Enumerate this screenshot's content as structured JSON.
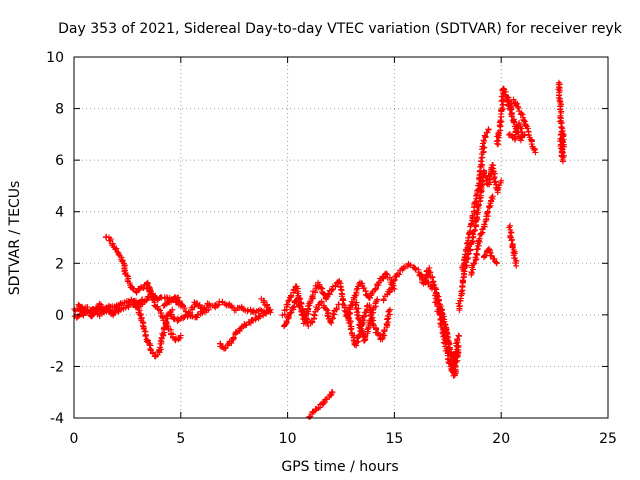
{
  "chart_data": {
    "type": "scatter",
    "title": "Day 353 of 2021, Sidereal Day-to-day VTEC variation (SDTVAR) for receiver reyk",
    "xlabel": "GPS time / hours",
    "ylabel": "SDTVAR / TECUs",
    "xlim": [
      0,
      25
    ],
    "ylim": [
      -4,
      10
    ],
    "xticks": [
      "0",
      "5",
      "10",
      "15",
      "20",
      "25"
    ],
    "yticks": [
      "-4",
      "-2",
      "0",
      "2",
      "4",
      "6",
      "8",
      "10"
    ],
    "grid": true,
    "marker": "plus",
    "series": [
      {
        "name": "SDTVAR",
        "color": "#ff0000",
        "segments": [
          [
            [
              0.0,
              0.2
            ],
            [
              0.3,
              0.3
            ],
            [
              0.6,
              0.1
            ],
            [
              0.9,
              0.2
            ],
            [
              1.2,
              0.0
            ],
            [
              1.5,
              0.2
            ],
            [
              1.8,
              0.3
            ],
            [
              2.1,
              0.4
            ],
            [
              2.4,
              0.5
            ],
            [
              2.7,
              0.6
            ],
            [
              3.0,
              0.5
            ],
            [
              3.3,
              0.6
            ],
            [
              3.6,
              0.7
            ],
            [
              3.9,
              0.6
            ],
            [
              4.2,
              0.7
            ],
            [
              4.5,
              0.6
            ],
            [
              4.8,
              0.5
            ],
            [
              5.0,
              0.4
            ]
          ],
          [
            [
              0.0,
              -0.1
            ],
            [
              0.3,
              0.0
            ],
            [
              0.6,
              0.1
            ],
            [
              0.9,
              0.2
            ],
            [
              1.2,
              0.3
            ],
            [
              1.5,
              0.2
            ],
            [
              1.8,
              0.1
            ],
            [
              2.1,
              0.2
            ],
            [
              2.4,
              0.3
            ],
            [
              2.7,
              0.4
            ],
            [
              3.0,
              0.3
            ],
            [
              3.3,
              0.5
            ]
          ],
          [
            [
              0.2,
              0.4
            ],
            [
              0.4,
              0.0
            ],
            [
              0.6,
              0.3
            ],
            [
              0.8,
              -0.1
            ],
            [
              1.0,
              0.2
            ],
            [
              1.2,
              0.4
            ],
            [
              1.4,
              0.1
            ],
            [
              1.6,
              0.3
            ],
            [
              1.8,
              0.0
            ],
            [
              2.0,
              0.2
            ]
          ],
          [
            [
              1.5,
              3.0
            ],
            [
              1.7,
              2.9
            ],
            [
              1.9,
              2.6
            ],
            [
              2.1,
              2.4
            ],
            [
              2.3,
              2.0
            ],
            [
              2.5,
              1.4
            ],
            [
              2.7,
              1.0
            ],
            [
              2.9,
              0.9
            ],
            [
              3.1,
              1.0
            ],
            [
              3.3,
              1.1
            ],
            [
              3.5,
              1.2
            ],
            [
              3.7,
              0.7
            ],
            [
              3.9,
              0.6
            ]
          ],
          [
            [
              2.8,
              0.5
            ],
            [
              3.0,
              0.3
            ],
            [
              3.2,
              -0.3
            ],
            [
              3.4,
              -0.9
            ],
            [
              3.6,
              -1.4
            ],
            [
              3.8,
              -1.6
            ],
            [
              4.0,
              -1.4
            ],
            [
              4.2,
              -0.6
            ],
            [
              4.4,
              0.0
            ],
            [
              4.6,
              0.2
            ]
          ],
          [
            [
              3.4,
              1.0
            ],
            [
              3.6,
              0.8
            ],
            [
              3.8,
              0.4
            ],
            [
              4.0,
              0.2
            ],
            [
              4.2,
              -0.2
            ],
            [
              4.4,
              -0.4
            ],
            [
              4.6,
              -0.8
            ],
            [
              4.8,
              -1.0
            ],
            [
              5.0,
              -0.8
            ]
          ],
          [
            [
              4.2,
              0.3
            ],
            [
              4.5,
              0.5
            ],
            [
              4.8,
              0.7
            ],
            [
              5.1,
              0.3
            ],
            [
              5.4,
              0.0
            ],
            [
              5.7,
              0.5
            ],
            [
              6.0,
              0.2
            ],
            [
              6.3,
              0.4
            ],
            [
              6.6,
              0.3
            ],
            [
              6.9,
              0.5
            ],
            [
              7.2,
              0.4
            ],
            [
              7.5,
              0.2
            ],
            [
              7.8,
              0.3
            ],
            [
              8.1,
              0.2
            ],
            [
              8.4,
              0.1
            ],
            [
              8.7,
              0.2
            ],
            [
              9.0,
              0.1
            ]
          ],
          [
            [
              4.5,
              0.0
            ],
            [
              4.8,
              -0.2
            ],
            [
              5.1,
              -0.1
            ],
            [
              5.4,
              0.0
            ],
            [
              5.7,
              -0.1
            ],
            [
              6.0,
              0.1
            ],
            [
              6.3,
              0.2
            ]
          ],
          [
            [
              6.8,
              -1.1
            ],
            [
              7.0,
              -1.3
            ],
            [
              7.2,
              -1.2
            ],
            [
              7.4,
              -1.0
            ],
            [
              7.6,
              -0.7
            ],
            [
              7.8,
              -0.5
            ],
            [
              8.0,
              -0.4
            ],
            [
              8.2,
              -0.3
            ],
            [
              8.4,
              -0.2
            ],
            [
              8.6,
              -0.1
            ],
            [
              8.8,
              0.0
            ],
            [
              9.0,
              0.1
            ],
            [
              9.2,
              0.2
            ]
          ],
          [
            [
              8.8,
              0.6
            ],
            [
              9.0,
              0.4
            ],
            [
              9.2,
              0.1
            ]
          ],
          [
            [
              9.8,
              0.0
            ],
            [
              10.0,
              0.4
            ],
            [
              10.2,
              0.8
            ],
            [
              10.4,
              1.1
            ],
            [
              10.6,
              0.5
            ],
            [
              10.8,
              -0.3
            ],
            [
              11.0,
              0.3
            ],
            [
              11.2,
              0.8
            ],
            [
              11.4,
              1.2
            ],
            [
              11.6,
              1.0
            ],
            [
              11.8,
              0.6
            ],
            [
              12.0,
              0.9
            ],
            [
              12.2,
              1.1
            ],
            [
              12.4,
              1.3
            ],
            [
              12.6,
              0.5
            ],
            [
              12.8,
              -0.2
            ],
            [
              13.0,
              0.4
            ],
            [
              13.2,
              0.9
            ],
            [
              13.4,
              1.3
            ],
            [
              13.6,
              1.0
            ],
            [
              13.8,
              0.6
            ],
            [
              14.0,
              0.9
            ],
            [
              14.2,
              1.1
            ],
            [
              14.4,
              1.4
            ],
            [
              14.6,
              1.6
            ],
            [
              14.8,
              1.4
            ],
            [
              15.0,
              1.0
            ]
          ],
          [
            [
              9.8,
              -0.5
            ],
            [
              10.0,
              -0.2
            ],
            [
              10.2,
              0.2
            ],
            [
              10.4,
              0.6
            ],
            [
              10.6,
              0.2
            ],
            [
              10.8,
              0.0
            ],
            [
              11.0,
              -0.4
            ],
            [
              11.2,
              -0.2
            ],
            [
              11.4,
              0.3
            ],
            [
              11.6,
              0.5
            ],
            [
              11.8,
              0.2
            ],
            [
              12.0,
              -0.3
            ],
            [
              12.2,
              0.1
            ],
            [
              12.4,
              0.4
            ]
          ],
          [
            [
              12.8,
              0.2
            ],
            [
              13.0,
              -0.6
            ],
            [
              13.2,
              -1.2
            ],
            [
              13.4,
              -0.6
            ],
            [
              13.6,
              0.0
            ],
            [
              13.8,
              0.4
            ],
            [
              14.0,
              -0.3
            ],
            [
              14.2,
              -0.7
            ],
            [
              14.4,
              -1.0
            ],
            [
              14.6,
              -0.5
            ],
            [
              14.8,
              0.2
            ]
          ],
          [
            [
              13.2,
              0.5
            ],
            [
              13.4,
              -0.4
            ],
            [
              13.6,
              -1.0
            ],
            [
              13.8,
              -0.5
            ],
            [
              14.0,
              0.2
            ],
            [
              14.2,
              0.6
            ]
          ],
          [
            [
              14.5,
              0.6
            ],
            [
              14.8,
              1.0
            ],
            [
              15.1,
              1.5
            ],
            [
              15.4,
              1.8
            ],
            [
              15.7,
              2.0
            ],
            [
              16.0,
              1.8
            ],
            [
              16.3,
              1.5
            ],
            [
              16.6,
              1.2
            ],
            [
              16.9,
              1.0
            ],
            [
              17.1,
              0.5
            ],
            [
              17.3,
              -0.2
            ],
            [
              17.5,
              -1.0
            ],
            [
              17.7,
              -2.0
            ],
            [
              17.8,
              -2.4
            ],
            [
              18.0,
              -1.2
            ]
          ],
          [
            [
              16.2,
              1.5
            ],
            [
              16.4,
              1.2
            ],
            [
              16.6,
              1.8
            ],
            [
              16.8,
              1.3
            ],
            [
              17.0,
              0.8
            ],
            [
              17.2,
              0.2
            ],
            [
              17.4,
              -0.6
            ],
            [
              17.6,
              -1.4
            ],
            [
              17.8,
              -1.8
            ],
            [
              18.0,
              -0.8
            ]
          ],
          [
            [
              16.9,
              0.7
            ],
            [
              17.1,
              0.0
            ],
            [
              17.3,
              -0.8
            ],
            [
              17.5,
              -1.6
            ],
            [
              17.7,
              -2.2
            ],
            [
              17.9,
              -1.5
            ]
          ],
          [
            [
              18.0,
              0.2
            ],
            [
              18.2,
              1.2
            ],
            [
              18.4,
              2.2
            ],
            [
              18.6,
              2.8
            ],
            [
              18.8,
              3.5
            ],
            [
              19.0,
              4.5
            ],
            [
              19.2,
              5.6
            ],
            [
              19.4,
              5.0
            ],
            [
              19.6,
              5.8
            ],
            [
              19.8,
              4.8
            ],
            [
              20.0,
              5.2
            ]
          ],
          [
            [
              18.2,
              1.8
            ],
            [
              18.4,
              2.6
            ],
            [
              18.6,
              3.6
            ],
            [
              18.8,
              4.4
            ],
            [
              19.0,
              5.2
            ],
            [
              19.2,
              6.8
            ],
            [
              19.4,
              7.2
            ]
          ],
          [
            [
              18.6,
              1.6
            ],
            [
              18.8,
              2.2
            ],
            [
              19.0,
              3.0
            ],
            [
              19.2,
              3.4
            ],
            [
              19.4,
              4.0
            ],
            [
              19.6,
              4.6
            ]
          ],
          [
            [
              19.2,
              2.2
            ],
            [
              19.4,
              2.6
            ],
            [
              19.6,
              2.2
            ],
            [
              19.8,
              2.0
            ]
          ],
          [
            [
              19.8,
              6.6
            ],
            [
              20.0,
              7.6
            ],
            [
              20.1,
              8.8
            ],
            [
              20.3,
              8.4
            ],
            [
              20.5,
              7.8
            ],
            [
              20.7,
              7.2
            ],
            [
              20.9,
              6.8
            ],
            [
              21.1,
              7.0
            ]
          ],
          [
            [
              20.2,
              8.4
            ],
            [
              20.4,
              8.0
            ],
            [
              20.6,
              8.3
            ],
            [
              20.8,
              8.1
            ],
            [
              21.0,
              7.6
            ],
            [
              21.2,
              7.3
            ],
            [
              21.4,
              6.8
            ],
            [
              21.6,
              6.3
            ]
          ],
          [
            [
              20.4,
              7.0
            ],
            [
              20.6,
              6.8
            ],
            [
              20.8,
              7.4
            ],
            [
              21.0,
              7.0
            ]
          ],
          [
            [
              20.4,
              3.4
            ],
            [
              20.5,
              2.8
            ],
            [
              20.6,
              2.4
            ],
            [
              20.7,
              1.9
            ]
          ],
          [
            [
              22.7,
              9.0
            ],
            [
              22.7,
              8.5
            ],
            [
              22.8,
              8.0
            ],
            [
              22.8,
              7.4
            ],
            [
              22.9,
              6.9
            ],
            [
              22.9,
              6.4
            ],
            [
              22.9,
              6.0
            ],
            [
              22.8,
              6.6
            ],
            [
              22.8,
              7.0
            ]
          ],
          [
            [
              11.0,
              -4.0
            ],
            [
              11.2,
              -3.8
            ],
            [
              11.4,
              -3.6
            ],
            [
              11.6,
              -3.5
            ],
            [
              11.8,
              -3.3
            ],
            [
              12.0,
              -3.1
            ],
            [
              12.1,
              -3.0
            ]
          ]
        ]
      }
    ]
  }
}
